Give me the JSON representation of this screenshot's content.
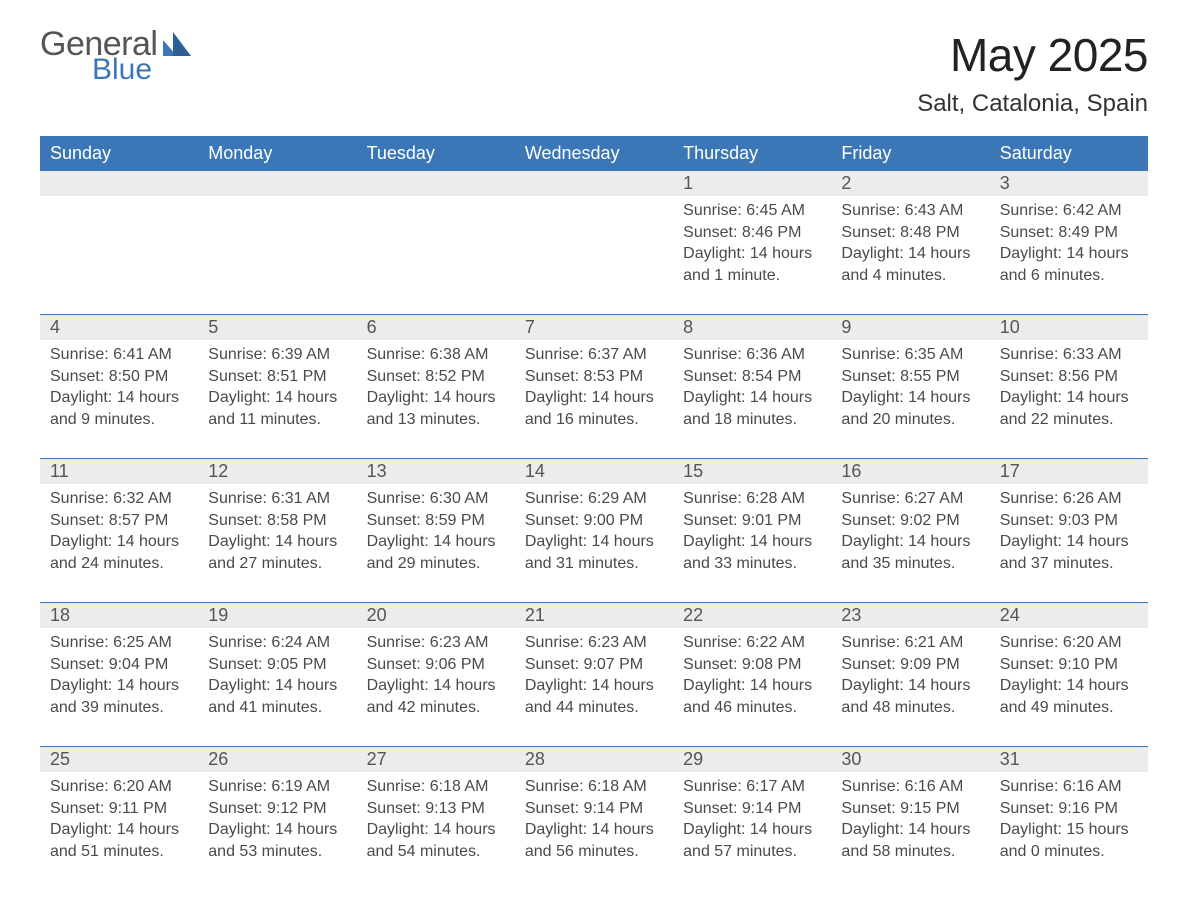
{
  "brand": {
    "line1": "General",
    "line2": "Blue"
  },
  "title": "May 2025",
  "location": "Salt, Catalonia, Spain",
  "colors": {
    "accent": "#3b77b7",
    "header_bg": "#3b77b7",
    "header_text": "#ffffff",
    "daynum_bg": "#ececec",
    "text": "#333333",
    "muted": "#4a4a4a",
    "background": "#ffffff"
  },
  "typography": {
    "title_fontsize": 46,
    "location_fontsize": 24,
    "weekday_fontsize": 18,
    "daynum_fontsize": 18,
    "body_fontsize": 16,
    "font_family": "Helvetica Neue, Arial, sans-serif"
  },
  "weekdays": [
    "Sunday",
    "Monday",
    "Tuesday",
    "Wednesday",
    "Thursday",
    "Friday",
    "Saturday"
  ],
  "labels": {
    "sunrise": "Sunrise: ",
    "sunset": "Sunset: ",
    "daylight": "Daylight: "
  },
  "weeks": [
    [
      {
        "day": "",
        "sunrise": "",
        "sunset": "",
        "daylight": ""
      },
      {
        "day": "",
        "sunrise": "",
        "sunset": "",
        "daylight": ""
      },
      {
        "day": "",
        "sunrise": "",
        "sunset": "",
        "daylight": ""
      },
      {
        "day": "",
        "sunrise": "",
        "sunset": "",
        "daylight": ""
      },
      {
        "day": "1",
        "sunrise": "6:45 AM",
        "sunset": "8:46 PM",
        "daylight": "14 hours and 1 minute."
      },
      {
        "day": "2",
        "sunrise": "6:43 AM",
        "sunset": "8:48 PM",
        "daylight": "14 hours and 4 minutes."
      },
      {
        "day": "3",
        "sunrise": "6:42 AM",
        "sunset": "8:49 PM",
        "daylight": "14 hours and 6 minutes."
      }
    ],
    [
      {
        "day": "4",
        "sunrise": "6:41 AM",
        "sunset": "8:50 PM",
        "daylight": "14 hours and 9 minutes."
      },
      {
        "day": "5",
        "sunrise": "6:39 AM",
        "sunset": "8:51 PM",
        "daylight": "14 hours and 11 minutes."
      },
      {
        "day": "6",
        "sunrise": "6:38 AM",
        "sunset": "8:52 PM",
        "daylight": "14 hours and 13 minutes."
      },
      {
        "day": "7",
        "sunrise": "6:37 AM",
        "sunset": "8:53 PM",
        "daylight": "14 hours and 16 minutes."
      },
      {
        "day": "8",
        "sunrise": "6:36 AM",
        "sunset": "8:54 PM",
        "daylight": "14 hours and 18 minutes."
      },
      {
        "day": "9",
        "sunrise": "6:35 AM",
        "sunset": "8:55 PM",
        "daylight": "14 hours and 20 minutes."
      },
      {
        "day": "10",
        "sunrise": "6:33 AM",
        "sunset": "8:56 PM",
        "daylight": "14 hours and 22 minutes."
      }
    ],
    [
      {
        "day": "11",
        "sunrise": "6:32 AM",
        "sunset": "8:57 PM",
        "daylight": "14 hours and 24 minutes."
      },
      {
        "day": "12",
        "sunrise": "6:31 AM",
        "sunset": "8:58 PM",
        "daylight": "14 hours and 27 minutes."
      },
      {
        "day": "13",
        "sunrise": "6:30 AM",
        "sunset": "8:59 PM",
        "daylight": "14 hours and 29 minutes."
      },
      {
        "day": "14",
        "sunrise": "6:29 AM",
        "sunset": "9:00 PM",
        "daylight": "14 hours and 31 minutes."
      },
      {
        "day": "15",
        "sunrise": "6:28 AM",
        "sunset": "9:01 PM",
        "daylight": "14 hours and 33 minutes."
      },
      {
        "day": "16",
        "sunrise": "6:27 AM",
        "sunset": "9:02 PM",
        "daylight": "14 hours and 35 minutes."
      },
      {
        "day": "17",
        "sunrise": "6:26 AM",
        "sunset": "9:03 PM",
        "daylight": "14 hours and 37 minutes."
      }
    ],
    [
      {
        "day": "18",
        "sunrise": "6:25 AM",
        "sunset": "9:04 PM",
        "daylight": "14 hours and 39 minutes."
      },
      {
        "day": "19",
        "sunrise": "6:24 AM",
        "sunset": "9:05 PM",
        "daylight": "14 hours and 41 minutes."
      },
      {
        "day": "20",
        "sunrise": "6:23 AM",
        "sunset": "9:06 PM",
        "daylight": "14 hours and 42 minutes."
      },
      {
        "day": "21",
        "sunrise": "6:23 AM",
        "sunset": "9:07 PM",
        "daylight": "14 hours and 44 minutes."
      },
      {
        "day": "22",
        "sunrise": "6:22 AM",
        "sunset": "9:08 PM",
        "daylight": "14 hours and 46 minutes."
      },
      {
        "day": "23",
        "sunrise": "6:21 AM",
        "sunset": "9:09 PM",
        "daylight": "14 hours and 48 minutes."
      },
      {
        "day": "24",
        "sunrise": "6:20 AM",
        "sunset": "9:10 PM",
        "daylight": "14 hours and 49 minutes."
      }
    ],
    [
      {
        "day": "25",
        "sunrise": "6:20 AM",
        "sunset": "9:11 PM",
        "daylight": "14 hours and 51 minutes."
      },
      {
        "day": "26",
        "sunrise": "6:19 AM",
        "sunset": "9:12 PM",
        "daylight": "14 hours and 53 minutes."
      },
      {
        "day": "27",
        "sunrise": "6:18 AM",
        "sunset": "9:13 PM",
        "daylight": "14 hours and 54 minutes."
      },
      {
        "day": "28",
        "sunrise": "6:18 AM",
        "sunset": "9:14 PM",
        "daylight": "14 hours and 56 minutes."
      },
      {
        "day": "29",
        "sunrise": "6:17 AM",
        "sunset": "9:14 PM",
        "daylight": "14 hours and 57 minutes."
      },
      {
        "day": "30",
        "sunrise": "6:16 AM",
        "sunset": "9:15 PM",
        "daylight": "14 hours and 58 minutes."
      },
      {
        "day": "31",
        "sunrise": "6:16 AM",
        "sunset": "9:16 PM",
        "daylight": "15 hours and 0 minutes."
      }
    ]
  ]
}
